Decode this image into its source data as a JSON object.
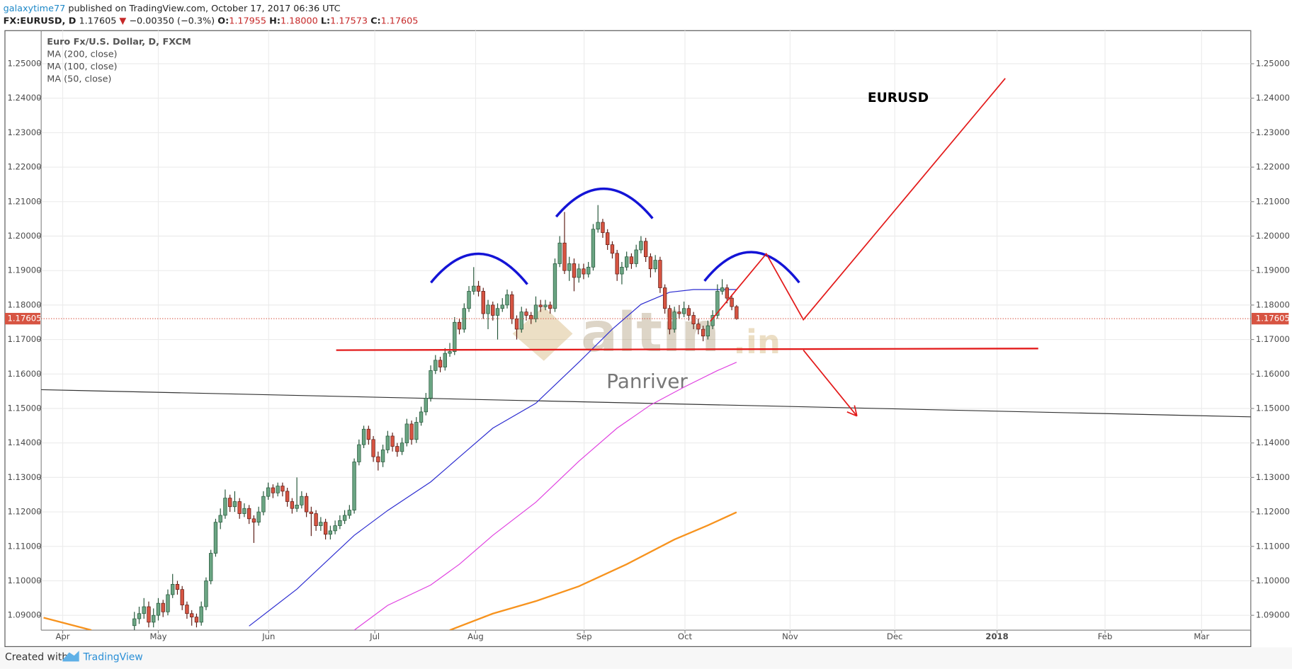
{
  "header": {
    "author": "galaxytime77",
    "published": "published on TradingView.com, October 17, 2017 06:36 UTC",
    "symbol": "FX:EURUSD, D",
    "last": "1.17605",
    "arrow": "▼",
    "change": "−0.00350 (−0.3%)",
    "ohlc": [
      {
        "label": "O:",
        "value": "1.17955"
      },
      {
        "label": "H:",
        "value": "1.18000"
      },
      {
        "label": "L:",
        "value": "1.17573"
      },
      {
        "label": "C:",
        "value": "1.17605"
      }
    ]
  },
  "footer": {
    "created": "Created with",
    "brand": "TradingView"
  },
  "chart_data": {
    "type": "candlestick",
    "title": "Euro Fx/U.S. Dollar, D, FXCM",
    "annotations": [
      "EURUSD",
      "Panriver"
    ],
    "watermark": [
      "altin",
      ".in"
    ],
    "up_color": "#6ba583",
    "down_color": "#d75442",
    "grid": true,
    "xlim": [
      -4.5,
      248.6
    ],
    "ylim": [
      1.0857,
      1.2596
    ],
    "xticks": [
      {
        "value": 0,
        "label": "Apr"
      },
      {
        "value": 20,
        "label": "May"
      },
      {
        "value": 43.1,
        "label": "Jun"
      },
      {
        "value": 65.3,
        "label": "Jul"
      },
      {
        "value": 86.4,
        "label": "Aug"
      },
      {
        "value": 109.1,
        "label": "Sep"
      },
      {
        "value": 130.2,
        "label": "Oct"
      },
      {
        "value": 152.2,
        "label": "Nov"
      },
      {
        "value": 174.1,
        "label": "Dec"
      },
      {
        "value": 195.5,
        "label": "2018"
      },
      {
        "value": 218.1,
        "label": "Feb"
      },
      {
        "value": 238.3,
        "label": "Mar"
      }
    ],
    "yticks": [
      {
        "value": 1.09,
        "label": "1.09000"
      },
      {
        "value": 1.1,
        "label": "1.10000"
      },
      {
        "value": 1.11,
        "label": "1.11000"
      },
      {
        "value": 1.12,
        "label": "1.12000"
      },
      {
        "value": 1.13,
        "label": "1.13000"
      },
      {
        "value": 1.14,
        "label": "1.14000"
      },
      {
        "value": 1.15,
        "label": "1.15000"
      },
      {
        "value": 1.16,
        "label": "1.16000"
      },
      {
        "value": 1.17,
        "label": "1.17000"
      },
      {
        "value": 1.18,
        "label": "1.18000"
      },
      {
        "value": 1.19,
        "label": "1.19000"
      },
      {
        "value": 1.2,
        "label": "1.20000"
      },
      {
        "value": 1.21,
        "label": "1.21000"
      },
      {
        "value": 1.22,
        "label": "1.22000"
      },
      {
        "value": 1.23,
        "label": "1.23000"
      },
      {
        "value": 1.24,
        "label": "1.24000"
      },
      {
        "value": 1.25,
        "label": "1.25000"
      }
    ],
    "candles": {
      "x": [
        15,
        16,
        17,
        18,
        19,
        20,
        21,
        22,
        23,
        24,
        25,
        26,
        27,
        28,
        29,
        30,
        31,
        32,
        33,
        34,
        35,
        36,
        37,
        38,
        39,
        40,
        41,
        42,
        43,
        44,
        45,
        46,
        47,
        48,
        49,
        50,
        51,
        52,
        53,
        54,
        55,
        56,
        57,
        58,
        59,
        60,
        61,
        62,
        63,
        64,
        65,
        66,
        67,
        68,
        69,
        70,
        71,
        72,
        73,
        74,
        75,
        76,
        77,
        78,
        79,
        80,
        81,
        82,
        83,
        84,
        85,
        86,
        87,
        88,
        89,
        90,
        91,
        92,
        93,
        94,
        95,
        96,
        97,
        98,
        99,
        100,
        101,
        102,
        103,
        104,
        105,
        106,
        107,
        108,
        109,
        110,
        111,
        112,
        113,
        114,
        115,
        116,
        117,
        118,
        119,
        120,
        121,
        122,
        123,
        124,
        125,
        126,
        127,
        128,
        129,
        130,
        131,
        132,
        133,
        134,
        135,
        136,
        137,
        138,
        139,
        140,
        141
      ],
      "open": [
        1.087,
        1.089,
        1.0905,
        1.0925,
        1.088,
        1.09,
        1.0935,
        1.091,
        1.096,
        1.099,
        1.0975,
        1.093,
        1.0905,
        1.0895,
        1.088,
        1.0925,
        1.1,
        1.108,
        1.117,
        1.119,
        1.124,
        1.1215,
        1.123,
        1.1195,
        1.121,
        1.118,
        1.117,
        1.12,
        1.1245,
        1.127,
        1.1255,
        1.1275,
        1.126,
        1.123,
        1.121,
        1.122,
        1.1245,
        1.12,
        1.1195,
        1.116,
        1.117,
        1.1135,
        1.1145,
        1.116,
        1.1175,
        1.119,
        1.1205,
        1.1345,
        1.1395,
        1.144,
        1.141,
        1.136,
        1.1345,
        1.138,
        1.142,
        1.139,
        1.1375,
        1.14,
        1.1455,
        1.141,
        1.146,
        1.149,
        1.153,
        1.161,
        1.164,
        1.162,
        1.166,
        1.1665,
        1.175,
        1.173,
        1.179,
        1.184,
        1.1855,
        1.184,
        1.1775,
        1.18,
        1.177,
        1.179,
        1.18,
        1.183,
        1.176,
        1.173,
        1.178,
        1.177,
        1.176,
        1.18,
        1.1795,
        1.18,
        1.179,
        1.192,
        1.198,
        1.19,
        1.192,
        1.188,
        1.1905,
        1.189,
        1.191,
        1.202,
        1.204,
        1.201,
        1.1975,
        1.195,
        1.189,
        1.191,
        1.194,
        1.192,
        1.196,
        1.1985,
        1.194,
        1.1905,
        1.193,
        1.185,
        1.179,
        1.173,
        1.178,
        1.1775,
        1.179,
        1.177,
        1.1745,
        1.173,
        1.171,
        1.174,
        1.177,
        1.184,
        1.185,
        1.182,
        1.17955
      ],
      "high": [
        1.091,
        1.0925,
        1.095,
        1.094,
        1.092,
        1.095,
        1.0945,
        1.0975,
        1.102,
        1.1,
        1.0985,
        1.094,
        1.0915,
        1.0905,
        1.094,
        1.101,
        1.109,
        1.118,
        1.121,
        1.1265,
        1.125,
        1.126,
        1.124,
        1.1225,
        1.122,
        1.119,
        1.1215,
        1.126,
        1.1285,
        1.128,
        1.1285,
        1.1285,
        1.127,
        1.124,
        1.13,
        1.126,
        1.1255,
        1.1215,
        1.1205,
        1.1185,
        1.118,
        1.116,
        1.1175,
        1.119,
        1.1205,
        1.122,
        1.1355,
        1.141,
        1.145,
        1.145,
        1.142,
        1.1375,
        1.1395,
        1.1435,
        1.143,
        1.14,
        1.1415,
        1.147,
        1.1465,
        1.1475,
        1.1505,
        1.1545,
        1.1625,
        1.1655,
        1.165,
        1.1675,
        1.169,
        1.1765,
        1.176,
        1.1805,
        1.1855,
        1.191,
        1.187,
        1.185,
        1.1815,
        1.181,
        1.1805,
        1.182,
        1.1845,
        1.184,
        1.177,
        1.1795,
        1.179,
        1.178,
        1.1825,
        1.1815,
        1.1815,
        1.181,
        1.1935,
        1.2,
        1.207,
        1.194,
        1.1935,
        1.192,
        1.192,
        1.1925,
        1.2035,
        1.209,
        1.205,
        1.202,
        1.1985,
        1.196,
        1.1925,
        1.1955,
        1.195,
        1.1975,
        1.2,
        1.1995,
        1.195,
        1.1945,
        1.194,
        1.186,
        1.18,
        1.1795,
        1.18,
        1.181,
        1.18,
        1.178,
        1.176,
        1.174,
        1.1755,
        1.1785,
        1.186,
        1.1875,
        1.186,
        1.183,
        1.18
      ],
      "low": [
        1.0855,
        1.0875,
        1.089,
        1.0865,
        1.0865,
        1.0885,
        1.0895,
        1.09,
        1.095,
        1.096,
        1.0915,
        1.089,
        1.087,
        1.0865,
        1.087,
        1.0915,
        1.099,
        1.107,
        1.115,
        1.118,
        1.12,
        1.12,
        1.118,
        1.1185,
        1.1165,
        1.111,
        1.116,
        1.119,
        1.1235,
        1.124,
        1.1245,
        1.1245,
        1.1215,
        1.1195,
        1.12,
        1.121,
        1.1185,
        1.113,
        1.1145,
        1.1145,
        1.112,
        1.112,
        1.1135,
        1.115,
        1.1165,
        1.118,
        1.1195,
        1.1335,
        1.1385,
        1.1395,
        1.1345,
        1.132,
        1.133,
        1.137,
        1.1375,
        1.136,
        1.1365,
        1.139,
        1.1395,
        1.14,
        1.145,
        1.148,
        1.152,
        1.16,
        1.1605,
        1.161,
        1.165,
        1.1655,
        1.1715,
        1.172,
        1.178,
        1.183,
        1.1825,
        1.176,
        1.173,
        1.1755,
        1.17,
        1.178,
        1.179,
        1.1745,
        1.17,
        1.172,
        1.1755,
        1.1745,
        1.175,
        1.178,
        1.1785,
        1.1775,
        1.178,
        1.191,
        1.189,
        1.187,
        1.184,
        1.1865,
        1.1875,
        1.188,
        1.19,
        1.201,
        1.1995,
        1.196,
        1.1935,
        1.187,
        1.186,
        1.19,
        1.1905,
        1.191,
        1.195,
        1.1925,
        1.188,
        1.1895,
        1.1835,
        1.1775,
        1.1715,
        1.172,
        1.176,
        1.1765,
        1.1755,
        1.173,
        1.1715,
        1.1695,
        1.17,
        1.173,
        1.176,
        1.183,
        1.1805,
        1.1785,
        1.17573
      ],
      "close": [
        1.089,
        1.0905,
        1.0925,
        1.088,
        1.09,
        1.0935,
        1.091,
        1.096,
        1.099,
        1.0975,
        1.093,
        1.0905,
        1.0895,
        1.088,
        1.0925,
        1.1,
        1.108,
        1.117,
        1.119,
        1.124,
        1.1215,
        1.123,
        1.1195,
        1.121,
        1.118,
        1.117,
        1.12,
        1.1245,
        1.127,
        1.1255,
        1.1275,
        1.126,
        1.123,
        1.121,
        1.122,
        1.1245,
        1.12,
        1.1195,
        1.116,
        1.117,
        1.1135,
        1.1145,
        1.116,
        1.1175,
        1.119,
        1.1205,
        1.1345,
        1.1395,
        1.144,
        1.141,
        1.136,
        1.1345,
        1.138,
        1.142,
        1.139,
        1.1375,
        1.14,
        1.1455,
        1.141,
        1.146,
        1.149,
        1.153,
        1.161,
        1.164,
        1.162,
        1.166,
        1.1665,
        1.175,
        1.173,
        1.179,
        1.184,
        1.1855,
        1.184,
        1.1775,
        1.18,
        1.177,
        1.179,
        1.18,
        1.183,
        1.176,
        1.173,
        1.178,
        1.177,
        1.176,
        1.18,
        1.1795,
        1.18,
        1.179,
        1.192,
        1.198,
        1.19,
        1.192,
        1.188,
        1.1905,
        1.189,
        1.191,
        1.202,
        1.204,
        1.201,
        1.1975,
        1.195,
        1.189,
        1.191,
        1.194,
        1.192,
        1.196,
        1.1985,
        1.194,
        1.1905,
        1.193,
        1.185,
        1.179,
        1.173,
        1.178,
        1.1775,
        1.179,
        1.177,
        1.1745,
        1.173,
        1.171,
        1.174,
        1.177,
        1.184,
        1.185,
        1.182,
        1.17955,
        1.17605
      ]
    },
    "series": [
      {
        "name": "MA (200, close)",
        "color": "#f7931e",
        "width": 2,
        "x": [
          -4,
          6,
          50,
          81,
          90,
          99,
          108,
          118,
          128,
          135,
          141
        ],
        "values": [
          1.0893,
          1.0857,
          null,
          1.0857,
          1.0905,
          1.0941,
          1.0984,
          1.1048,
          1.112,
          1.1161,
          1.1199
        ]
      },
      {
        "name": "MA (100, close)",
        "color": "#e040e0",
        "width": 1,
        "x": [
          61,
          68,
          77,
          83,
          90,
          99,
          108,
          116,
          123,
          130,
          137,
          141
        ],
        "values": [
          1.0857,
          1.0929,
          1.0988,
          1.1048,
          1.1132,
          1.1228,
          1.1347,
          1.1443,
          1.151,
          1.1562,
          1.161,
          1.1634
        ]
      },
      {
        "name": "MA (50, close)",
        "color": "#2b2bd0",
        "width": 1,
        "x": [
          39,
          49,
          61,
          68,
          77,
          83,
          90,
          99,
          108,
          115,
          121,
          127,
          132,
          141
        ],
        "values": [
          1.0869,
          1.0976,
          1.1132,
          1.1204,
          1.1287,
          1.1359,
          1.1443,
          1.1515,
          1.1634,
          1.173,
          1.1802,
          1.1837,
          1.1845,
          1.1845
        ]
      }
    ]
  }
}
